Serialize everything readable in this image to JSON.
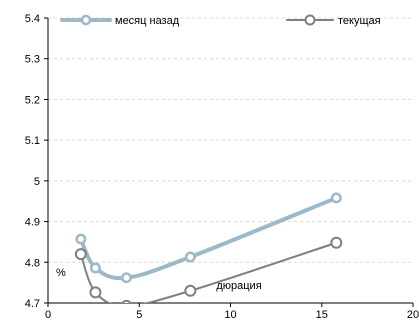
{
  "chart_data": {
    "type": "line",
    "title": "",
    "xlabel": "",
    "ylabel": "%",
    "xlim": [
      0,
      20
    ],
    "ylim": [
      4.7,
      5.4
    ],
    "x_ticks": [
      0,
      5,
      10,
      15,
      20
    ],
    "y_ticks": [
      4.7,
      4.8,
      4.9,
      5.0,
      5.1,
      5.2,
      5.3,
      5.4
    ],
    "x_tick_labels": [
      "0",
      "5",
      "10",
      "15",
      "20"
    ],
    "y_tick_labels": [
      "4.7",
      "4.8",
      "4.9",
      "5",
      "5.1",
      "5.2",
      "5.3",
      "5.4"
    ],
    "grid": "horizontal",
    "legend_position": "top",
    "annotations": [
      {
        "text": "дюрация",
        "x": 7.8,
        "y": 4.73
      }
    ],
    "series": [
      {
        "name": "месяц назад",
        "color": "#9db8c8",
        "points": [
          {
            "x": 1.8,
            "y": 4.857
          },
          {
            "x": 2.6,
            "y": 4.786
          },
          {
            "x": 4.3,
            "y": 4.762
          },
          {
            "x": 7.8,
            "y": 4.813
          },
          {
            "x": 15.8,
            "y": 4.958
          }
        ]
      },
      {
        "name": "текущая",
        "color": "#7f7f7f",
        "points": [
          {
            "x": 1.8,
            "y": 4.82
          },
          {
            "x": 2.6,
            "y": 4.726
          },
          {
            "x": 4.3,
            "y": 4.693
          },
          {
            "x": 7.8,
            "y": 4.73
          },
          {
            "x": 15.8,
            "y": 4.848
          }
        ]
      }
    ]
  }
}
